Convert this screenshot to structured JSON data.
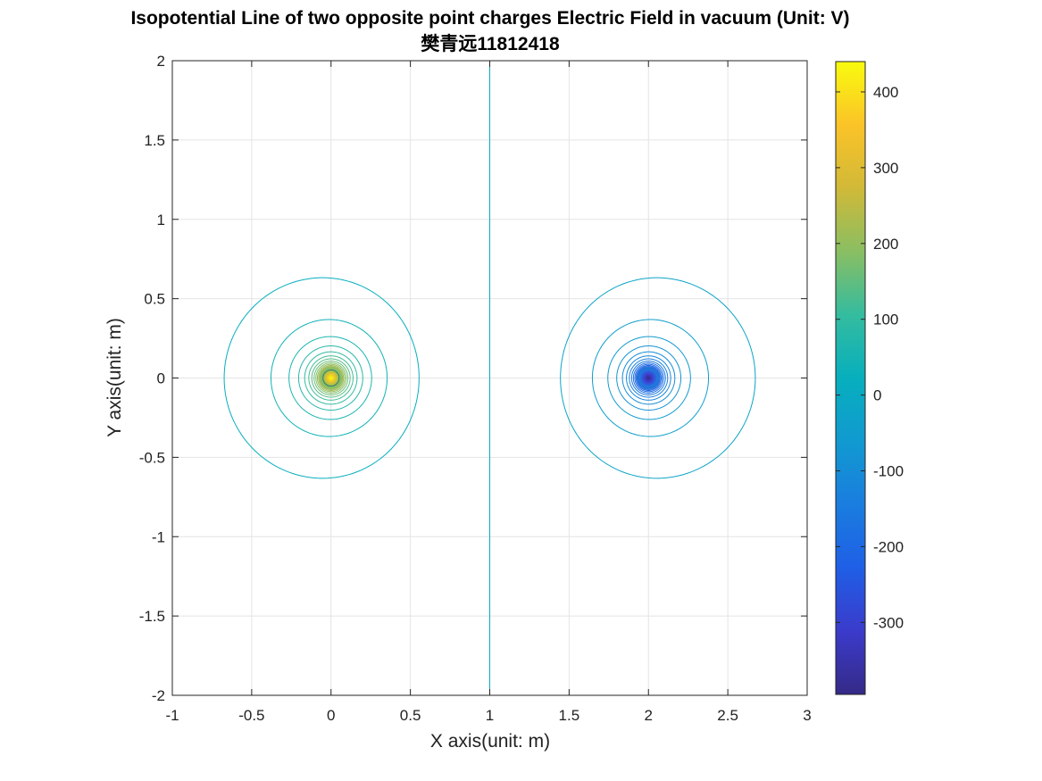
{
  "chart_data": {
    "type": "contour",
    "title": "Isopotential Line of two opposite point charges Electric Field in vacuum (Unit: V)",
    "subtitle": "樊青远11812418",
    "xlabel": "X axis(unit: m)",
    "ylabel": "Y axis(unit: m)",
    "xlim": [
      -1,
      3
    ],
    "ylim": [
      -2,
      2
    ],
    "xticks": [
      -1,
      -0.5,
      0,
      0.5,
      1,
      1.5,
      2,
      2.5,
      3
    ],
    "yticks": [
      -2,
      -1.5,
      -1,
      -0.5,
      0,
      0.5,
      1,
      1.5,
      2
    ],
    "grid": true,
    "charges": [
      {
        "x": 0,
        "y": 0,
        "sign": "positive"
      },
      {
        "x": 2,
        "y": 0,
        "sign": "negative"
      }
    ],
    "contour_levels": [
      20,
      40,
      60,
      80,
      100,
      120,
      140,
      160,
      180,
      200,
      220,
      240,
      260,
      280,
      300,
      320,
      340,
      360,
      380,
      400,
      420,
      440
    ],
    "colorbar": {
      "min": -395,
      "max": 440,
      "ticks": [
        400,
        300,
        200,
        100,
        0,
        -100,
        -200,
        -300
      ],
      "colormap": "parula"
    }
  }
}
